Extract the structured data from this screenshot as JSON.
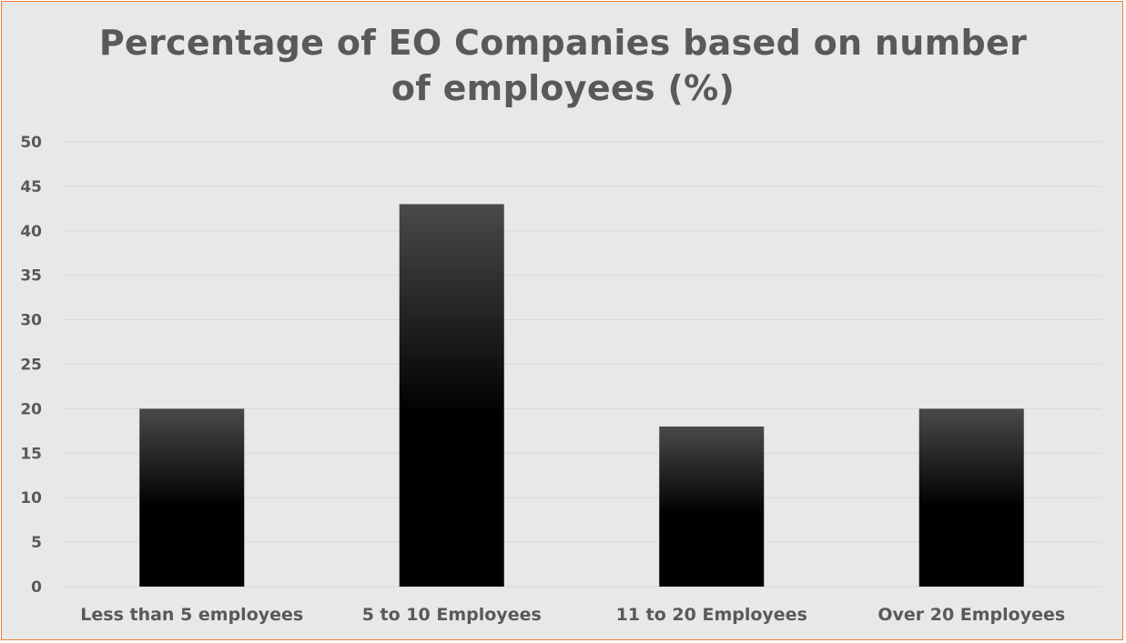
{
  "chart_data": {
    "type": "bar",
    "title_lines": [
      "Percentage of EO Companies based on number",
      "of employees (%)"
    ],
    "categories": [
      "Less than 5 employees",
      "5 to 10 Employees",
      "11 to 20 Employees",
      "Over 20 Employees"
    ],
    "values": [
      20,
      43,
      18,
      20
    ],
    "ylim": [
      0,
      50
    ],
    "y_ticks": [
      0,
      5,
      10,
      15,
      20,
      25,
      30,
      35,
      40,
      45,
      50
    ],
    "grid": true,
    "legend": "none",
    "colors": {
      "frame_border": "#ED7D31",
      "background": "#E8E8E8",
      "text": "#595959",
      "gridline": "#D9D9D9",
      "bar_top": "#4A4A4A",
      "bar_bottom": "#000000"
    }
  }
}
